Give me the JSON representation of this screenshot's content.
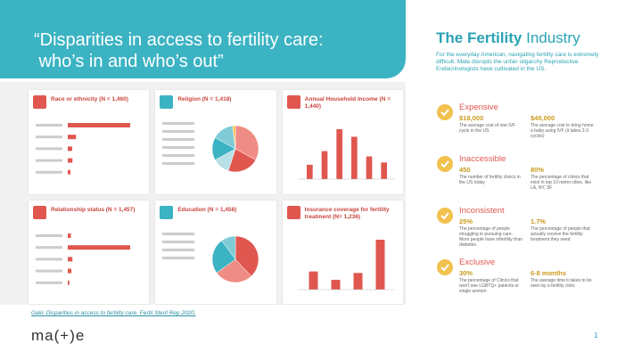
{
  "header": {
    "title_line1": "“Disparities in access to fertility care:",
    "title_line2": " who’s in and who’s out”"
  },
  "cards": [
    {
      "title": "Race or ethnicity (N = 1,460)",
      "chart": {
        "type": "hbar",
        "color": "#e0574f",
        "values": [
          1065,
          140,
          75,
          80,
          45
        ]
      }
    },
    {
      "title": "Religion (N = 1,418)",
      "chart": {
        "type": "pie",
        "colors": [
          "#f08c86",
          "#e0574f",
          "#b8e0e6",
          "#3bb3c3",
          "#7fcbd6",
          "#f6c34a"
        ],
        "values": [
          33,
          22,
          12,
          16,
          15,
          2
        ]
      }
    },
    {
      "title": "Annual Household income (N = 1,440)",
      "chart": {
        "type": "vbar",
        "color": "#e0574f",
        "values": [
          95,
          185,
          330,
          280,
          150,
          110
        ]
      }
    },
    {
      "title": "Relationship status (N = 1,457)",
      "chart": {
        "type": "hbar",
        "color": "#e0574f",
        "values": [
          60,
          1200,
          90,
          70,
          30
        ]
      }
    },
    {
      "title": "Education (N = 1,458)",
      "chart": {
        "type": "pie",
        "colors": [
          "#e0574f",
          "#f08c86",
          "#3bb3c3",
          "#7fcbd6"
        ],
        "values": [
          38,
          27,
          25,
          10
        ]
      }
    },
    {
      "title": "Insurance coverage for fertility treatment (N= 1,236)",
      "chart": {
        "type": "vbar",
        "color": "#e0574f",
        "values": [
          120,
          65,
          110,
          330
        ]
      }
    }
  ],
  "citation": "Galic Disparities in access to fertility care. Fertil Steril Rep 2020.",
  "logo": "ma(+)e",
  "sidebar": {
    "title_bold": "The Fertility",
    "title_light": "Industry",
    "intro": "For the everyday American, navigating fertility care is extremely difficult.  Mate disrupts the unfair oligarchy Reproductive Endocrinologists have cultivated in the US.",
    "items": [
      {
        "heading": "Expensive",
        "stats": [
          {
            "value": "$18,000",
            "text": "The average cost of one IVF cycle in the US"
          },
          {
            "value": "$40,000",
            "text": "The average cost to bring home a baby using IVF (it takes 2-3 cycles)"
          }
        ]
      },
      {
        "heading": "Inaccessible",
        "stats": [
          {
            "value": "450",
            "text": "The number of fertility clinics in the US today"
          },
          {
            "value": "80%",
            "text": "The percentage of clinics that exist in top 10 metro cities, like LA, NY, SF"
          }
        ]
      },
      {
        "heading": "Inconsistent",
        "stats": [
          {
            "value": "25%",
            "text": "The percentage of people struggling in pursuing care. More people have infertility than diabetes."
          },
          {
            "value": "1.7%",
            "text": "The percentage of people that actually receive the fertility treatment they need"
          }
        ]
      },
      {
        "heading": "Exclusive",
        "stats": [
          {
            "value": "30%",
            "text": "The percentage of Clinics that won't see LGBTQ+ patients or single women"
          },
          {
            "value": "6-8 months",
            "text": "The average time it takes to be seen by a fertility clinic"
          }
        ]
      }
    ]
  },
  "page_number": "1"
}
